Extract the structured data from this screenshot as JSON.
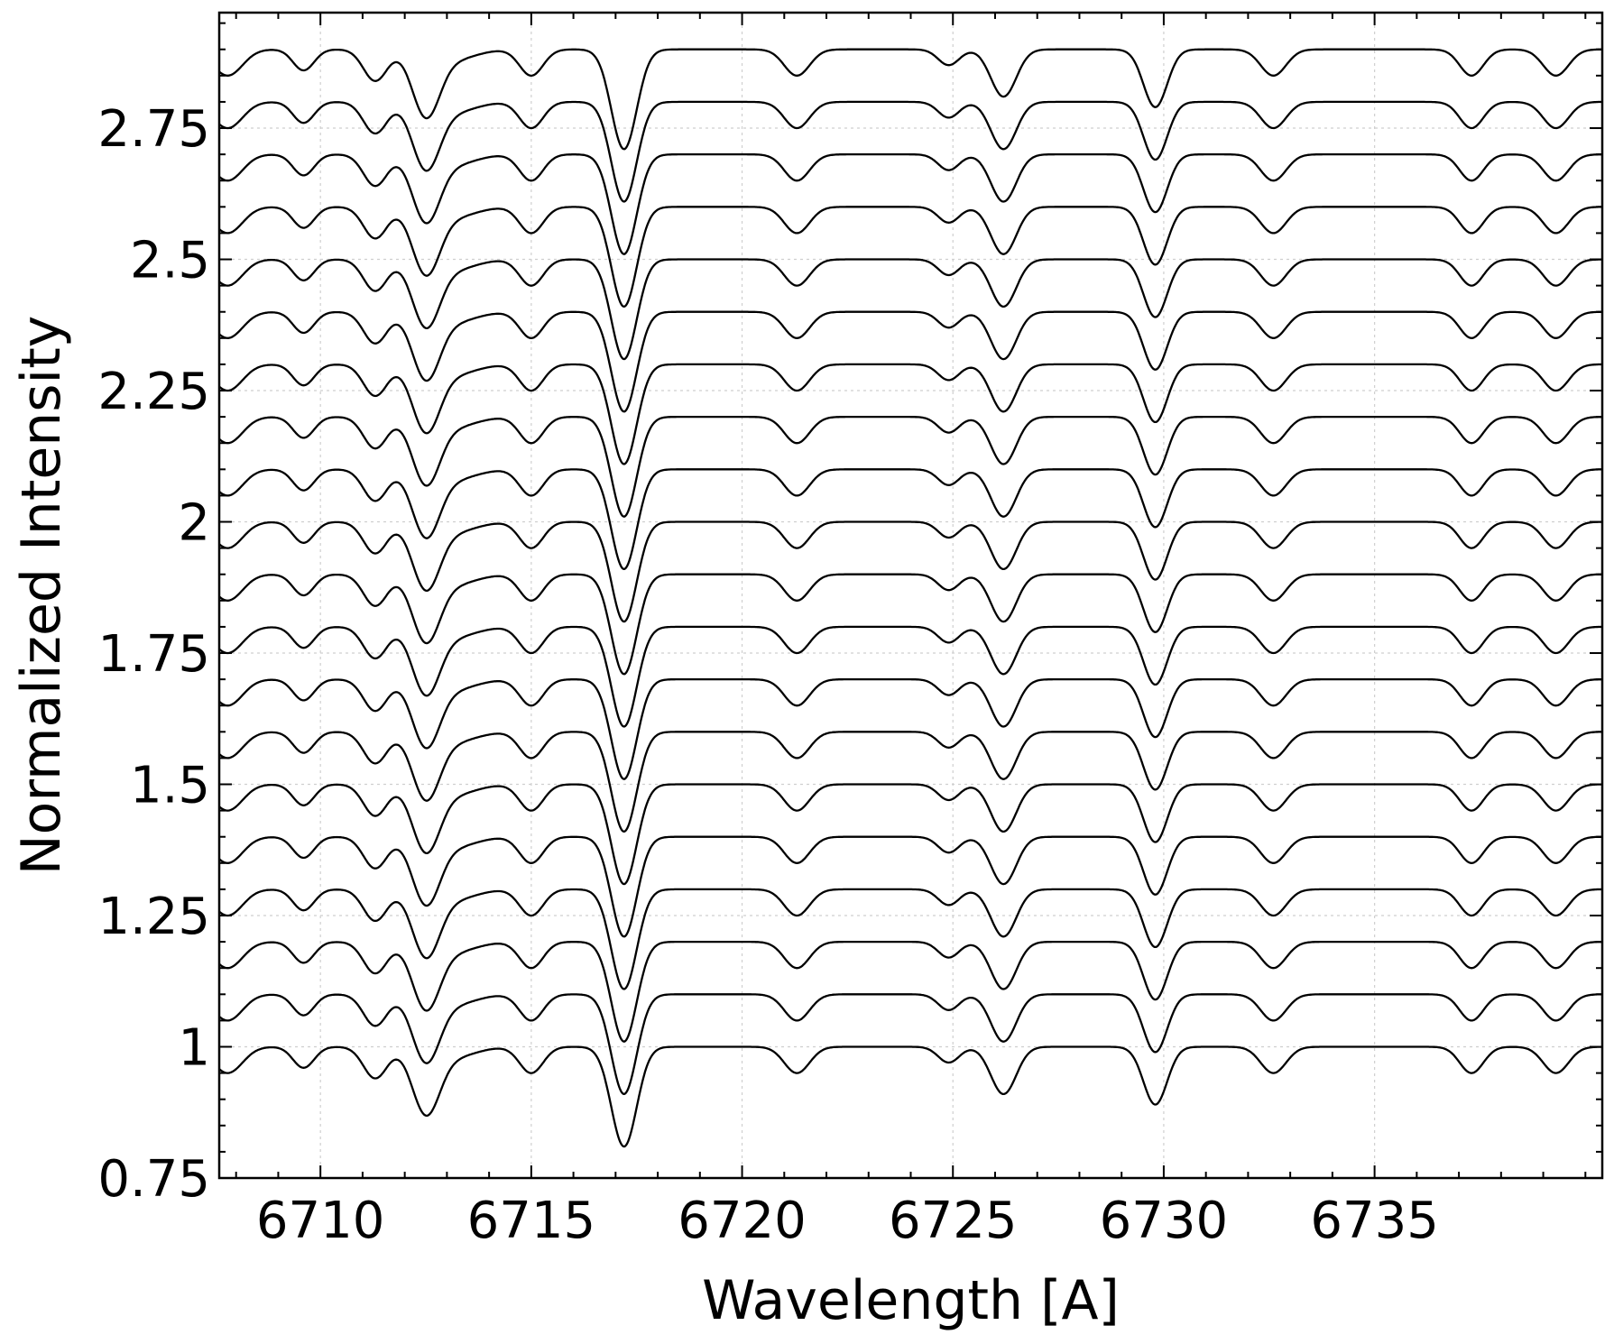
{
  "chart_data": {
    "type": "line",
    "xlabel": "Wavelength [A]",
    "ylabel": "Normalized Intensity",
    "xlim": [
      6707.6,
      6740.4
    ],
    "ylim": [
      0.75,
      2.97
    ],
    "xticks": [
      6710,
      6715,
      6720,
      6725,
      6730,
      6735
    ],
    "xtick_labels": [
      "6710",
      "6715",
      "6720",
      "6725",
      "6730",
      "6735"
    ],
    "yticks": [
      0.75,
      1.0,
      1.25,
      1.5,
      1.75,
      2.0,
      2.25,
      2.5,
      2.75
    ],
    "ytick_labels": [
      "0.75",
      "1",
      "1.25",
      "1.5",
      "1.75",
      "2",
      "2.25",
      "2.5",
      "2.75"
    ],
    "grid": true,
    "line_color": "#000000",
    "stack": {
      "count": 20,
      "continuum_levels": [
        1.0,
        1.1,
        1.2,
        1.3,
        1.4,
        1.5,
        1.6,
        1.7,
        1.8,
        1.9,
        2.0,
        2.1,
        2.2,
        2.3,
        2.4,
        2.5,
        2.6,
        2.7,
        2.8,
        2.9
      ]
    },
    "absorption_lines": [
      {
        "center": 6707.8,
        "depth": 0.05,
        "width": 0.35
      },
      {
        "center": 6709.6,
        "depth": 0.04,
        "width": 0.25
      },
      {
        "center": 6711.3,
        "depth": 0.06,
        "width": 0.28
      },
      {
        "center": 6712.5,
        "depth": 0.12,
        "width": 0.32
      },
      {
        "center": 6713.1,
        "depth": 0.02,
        "width": 0.55
      },
      {
        "center": 6715.0,
        "depth": 0.05,
        "width": 0.28
      },
      {
        "center": 6717.2,
        "depth": 0.19,
        "width": 0.3
      },
      {
        "center": 6721.3,
        "depth": 0.05,
        "width": 0.3
      },
      {
        "center": 6724.9,
        "depth": 0.03,
        "width": 0.25
      },
      {
        "center": 6726.2,
        "depth": 0.09,
        "width": 0.3
      },
      {
        "center": 6729.8,
        "depth": 0.11,
        "width": 0.28
      },
      {
        "center": 6732.6,
        "depth": 0.05,
        "width": 0.3
      },
      {
        "center": 6737.3,
        "depth": 0.05,
        "width": 0.28
      },
      {
        "center": 6739.3,
        "depth": 0.05,
        "width": 0.3
      }
    ]
  }
}
